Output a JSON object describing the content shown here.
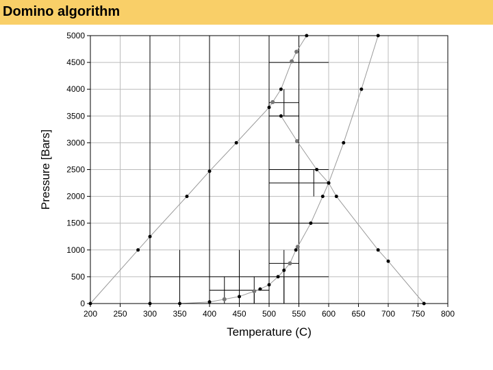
{
  "header": {
    "title": "Domino algorithm"
  },
  "colors": {
    "title_bar": "#f9cf68",
    "curve": "#999999",
    "point": "#000000",
    "point_alt": "#777777",
    "grid": "#bbbbbb",
    "box": "#000000"
  },
  "chart_data": {
    "type": "scatter",
    "title": "",
    "xlabel": "Temperature (C)",
    "ylabel": "Pressure [Bars]",
    "xlim": [
      200,
      800
    ],
    "ylim": [
      0,
      5000
    ],
    "xticks": [
      200,
      250,
      300,
      350,
      400,
      450,
      500,
      550,
      600,
      650,
      700,
      750,
      800
    ],
    "yticks": [
      0,
      500,
      1000,
      1500,
      2000,
      2500,
      3000,
      3500,
      4000,
      4500,
      5000
    ],
    "grid": true,
    "series": [
      {
        "points": [
          [
            200,
            0
          ],
          [
            280,
            1000
          ],
          [
            300,
            1250
          ],
          [
            362,
            2000
          ],
          [
            400,
            2470
          ],
          [
            445,
            3000
          ],
          [
            500,
            3660
          ],
          [
            506,
            3760
          ],
          [
            520,
            4000
          ],
          [
            538,
            4520
          ],
          [
            546,
            4700
          ],
          [
            563,
            5000
          ]
        ]
      },
      {
        "points": [
          [
            300,
            0
          ],
          [
            350,
            0
          ],
          [
            400,
            30
          ],
          [
            425,
            80
          ],
          [
            450,
            130
          ],
          [
            475,
            230
          ],
          [
            485,
            270
          ],
          [
            500,
            350
          ],
          [
            515,
            500
          ],
          [
            525,
            620
          ],
          [
            535,
            750
          ],
          [
            545,
            1000
          ],
          [
            548,
            1060
          ],
          [
            570,
            1500
          ],
          [
            590,
            2000
          ],
          [
            600,
            2250
          ],
          [
            625,
            3000
          ],
          [
            655,
            4000
          ],
          [
            683,
            5000
          ]
        ]
      },
      {
        "points": [
          [
            520,
            3500
          ],
          [
            547,
            3030
          ],
          [
            580,
            2500
          ],
          [
            600,
            2250
          ],
          [
            613,
            2000
          ],
          [
            683,
            1000
          ],
          [
            700,
            790
          ],
          [
            760,
            0
          ]
        ]
      }
    ],
    "alt_points": [
      [
        425,
        80
      ],
      [
        475,
        230
      ],
      [
        535,
        750
      ],
      [
        548,
        1060
      ],
      [
        506,
        3760
      ],
      [
        538,
        4520
      ],
      [
        546,
        4700
      ],
      [
        547,
        3030
      ]
    ],
    "vertical_lines": [
      [
        300,
        0,
        5000
      ],
      [
        400,
        0,
        5000
      ],
      [
        500,
        0,
        5000
      ],
      [
        550,
        0,
        5000
      ],
      [
        350,
        0,
        1000
      ],
      [
        450,
        0,
        1000
      ],
      [
        425,
        0,
        500
      ],
      [
        475,
        0,
        500
      ],
      [
        525,
        0,
        500
      ],
      [
        475,
        0,
        250
      ],
      [
        525,
        0,
        1000
      ],
      [
        575,
        2000,
        2500
      ],
      [
        525,
        3500,
        4000
      ]
    ],
    "horizontal_lines": [
      [
        300,
        600,
        500
      ],
      [
        400,
        500,
        250
      ],
      [
        500,
        550,
        750
      ],
      [
        500,
        600,
        1500
      ],
      [
        500,
        600,
        2250
      ],
      [
        500,
        600,
        2500
      ],
      [
        500,
        550,
        3500
      ],
      [
        500,
        550,
        3750
      ],
      [
        500,
        600,
        4500
      ]
    ]
  }
}
